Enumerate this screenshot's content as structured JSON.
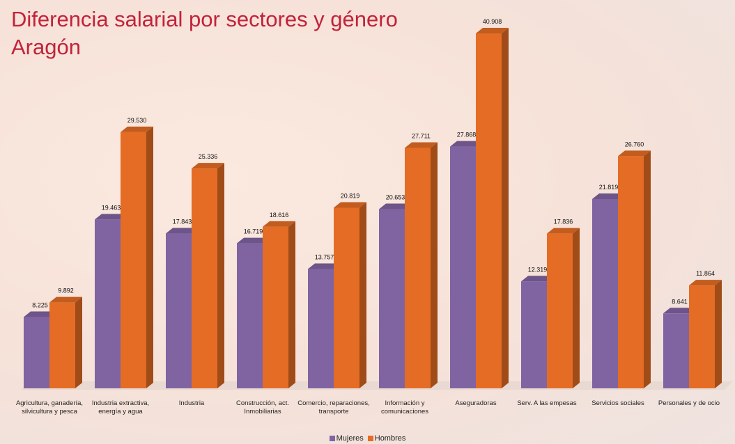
{
  "chart_data": {
    "type": "bar3d",
    "title": "Diferencia salarial por sectores y género",
    "subtitle": "Aragón",
    "categories": [
      "Agricultura, ganadería, silvicultura y pesca",
      "Industria extractiva, energía y agua",
      "Industria",
      "Construcción, act. Inmobiliarias",
      "Comercio, reparaciones, transporte",
      "Información y comunicaciones",
      "Aseguradoras",
      "Serv. A las empesas",
      "Servicios sociales",
      "Personales y de ocio"
    ],
    "series": [
      {
        "name": "Mujeres",
        "color": "#8064a2",
        "values": [
          8225,
          19463,
          17843,
          16719,
          13757,
          20653,
          27868,
          12319,
          21819,
          8641
        ],
        "value_labels": [
          "8.225",
          "19.463",
          "17.843",
          "16.719",
          "13.757",
          "20.653",
          "27.868",
          "12.319",
          "21.819",
          "8.641"
        ]
      },
      {
        "name": "Hombres",
        "color": "#e46c24",
        "values": [
          9892,
          29530,
          25336,
          18616,
          20819,
          27711,
          40908,
          17836,
          26760,
          11864
        ],
        "value_labels": [
          "9.892",
          "29.530",
          "25.336",
          "18.616",
          "20.819",
          "27.711",
          "40.908",
          "17.836",
          "26.760",
          "11.864"
        ]
      }
    ],
    "legend": "bottom"
  }
}
